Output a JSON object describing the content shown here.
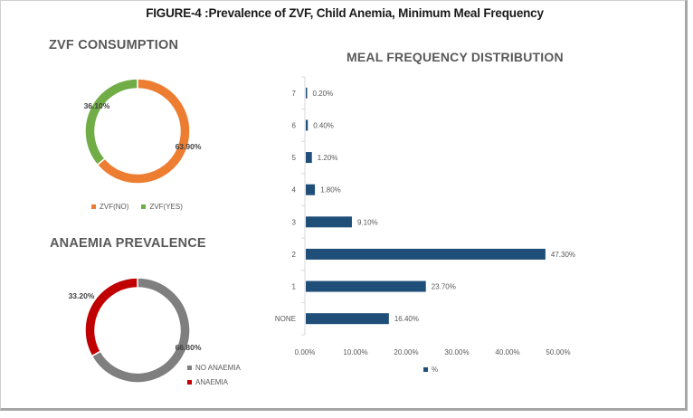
{
  "figure_title": "FIGURE-4 :Prevalence of ZVF, Child Anemia, Minimum Meal Frequency",
  "colors": {
    "zvf_no": "#ed7d31",
    "zvf_yes": "#70ad47",
    "no_anaemia": "#7f7f7f",
    "anaemia": "#c00000",
    "bar": "#1f4e79",
    "text": "#595959"
  },
  "chart_data": [
    {
      "type": "pie",
      "variant": "donut",
      "title": "ZVF CONSUMPTION",
      "categories": [
        "ZVF(NO)",
        "ZVF(YES)"
      ],
      "values": [
        63.9,
        36.1
      ],
      "data_labels": [
        "63.90%",
        "36.10%"
      ],
      "legend": [
        "ZVF(NO)",
        "ZVF(YES)"
      ],
      "legend_position": "bottom"
    },
    {
      "type": "pie",
      "variant": "donut",
      "title": "ANAEMIA PREVALENCE",
      "categories": [
        "NO ANAEMIA",
        "ANAEMIA"
      ],
      "values": [
        66.8,
        33.2
      ],
      "data_labels": [
        "66.80%",
        "33.20%"
      ],
      "legend": [
        "NO ANAEMIA",
        "ANAEMIA"
      ],
      "legend_position": "right"
    },
    {
      "type": "bar",
      "orientation": "horizontal",
      "title": "MEAL FREQUENCY DISTRIBUTION",
      "categories": [
        "NONE",
        "1",
        "2",
        "3",
        "4",
        "5",
        "6",
        "7"
      ],
      "series": [
        {
          "name": "%",
          "values": [
            16.4,
            23.7,
            47.3,
            9.1,
            1.8,
            1.2,
            0.4,
            0.2
          ]
        }
      ],
      "data_labels": [
        "16.40%",
        "23.70%",
        "47.30%",
        "9.10%",
        "1.80%",
        "1.20%",
        "0.40%",
        "0.20%"
      ],
      "xlabel": "",
      "ylabel": "",
      "xlim": [
        0,
        50
      ],
      "x_ticks": [
        "0.00%",
        "10.00%",
        "20.00%",
        "30.00%",
        "40.00%",
        "50.00%"
      ],
      "x_tick_values": [
        0,
        10,
        20,
        30,
        40,
        50
      ],
      "grid": false,
      "legend": [
        "%"
      ],
      "legend_position": "bottom"
    }
  ]
}
